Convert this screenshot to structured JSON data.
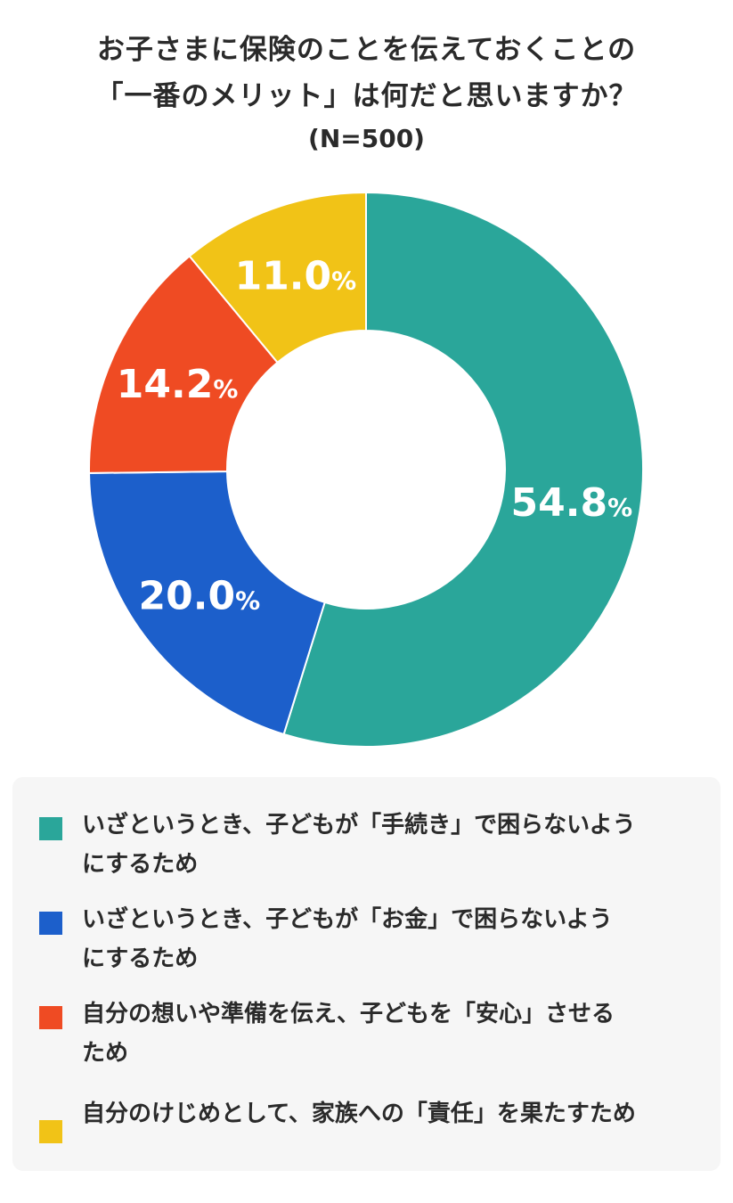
{
  "title": {
    "line1": "お子さまに保険のことを伝えておくことの",
    "line2": "「一番のメリット」は何だと思いますか？",
    "sample": "(N=500)"
  },
  "chart_data": {
    "type": "pie",
    "title": "お子さまに保険のことを伝えておくことの「一番のメリット」は何だと思いますか？",
    "subtitle": "(N=500)",
    "unit": "%",
    "slices": [
      {
        "label": "いざというとき、子どもが「手続き」で困らないようにするため",
        "value": 54.8,
        "display": "54.8",
        "color": "#2aa69a"
      },
      {
        "label": "いざというとき、子どもが「お金」で困らないようにするため",
        "value": 20.0,
        "display": "20.0",
        "color": "#1c5fcb"
      },
      {
        "label": "自分の想いや準備を伝え、子どもを「安心」させるため",
        "value": 14.2,
        "display": "14.2",
        "color": "#ef4b23"
      },
      {
        "label": "自分のけじめとして、家族への「責任」を果たすため",
        "value": 11.0,
        "display": "11.0",
        "color": "#f1c317"
      }
    ]
  },
  "legend": {
    "items": [
      {
        "line1": "いざというとき、子どもが「手続き」で困らないよう",
        "line2": "にするため",
        "color": "#2aa69a"
      },
      {
        "line1": "いざというとき、子どもが「お金」で困らないよう",
        "line2": "にするため",
        "color": "#1c5fcb"
      },
      {
        "line1": "自分の想いや準備を伝え、子どもを「安心」させる",
        "line2": "ため",
        "color": "#ef4b23"
      },
      {
        "line1": "自分のけじめとして、家族への「責任」を果たすため",
        "line2": "",
        "color": "#f1c317"
      }
    ]
  }
}
